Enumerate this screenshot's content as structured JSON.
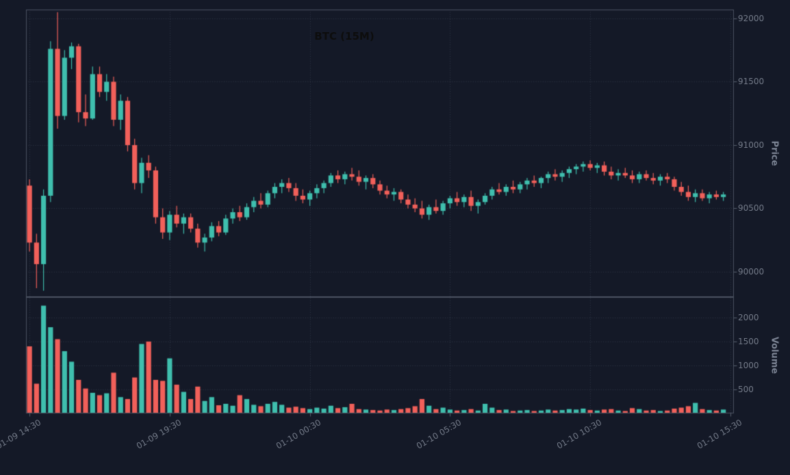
{
  "chart_data": {
    "type": "candlestick",
    "title": "BTC (15M)",
    "symbol": "BTC",
    "interval": "15M",
    "colors": {
      "background": "#141927",
      "up": "#3fbfae",
      "down": "#f2605a",
      "grid": "rgba(118,128,145,0.32)",
      "frame": "#4d5463",
      "tick": "#5a6170",
      "tick_label": "#747b89",
      "axis_title": "#7b8393",
      "title_color": "#0d0d0d"
    },
    "panels": [
      {
        "name": "price",
        "ylabel": "Price",
        "yticks": [
          90000,
          90500,
          91000,
          91500,
          92000
        ],
        "ylim": [
          89800,
          92070
        ]
      },
      {
        "name": "volume",
        "ylabel": "Volume",
        "yticks": [
          500,
          1000,
          1500,
          2000
        ],
        "ylim": [
          0,
          2430
        ]
      }
    ],
    "x_ticks": {
      "labels": [
        "01-09 14:30",
        "01-09 19:30",
        "01-10 00:30",
        "01-10 05:30",
        "01-10 10:30",
        "01-10 15:30"
      ],
      "indices": [
        0,
        20,
        40,
        60,
        80,
        100
      ]
    },
    "grid": true,
    "candles": [
      [
        90680,
        90730,
        90160,
        90230,
        1400
      ],
      [
        90230,
        90300,
        89870,
        90060,
        620
      ],
      [
        90060,
        90650,
        89850,
        90600,
        2250
      ],
      [
        90600,
        91820,
        90550,
        91760,
        1800
      ],
      [
        91760,
        92050,
        91130,
        91230,
        1550
      ],
      [
        91230,
        91750,
        91200,
        91690,
        1300
      ],
      [
        91690,
        91810,
        91600,
        91780,
        1080
      ],
      [
        91780,
        91800,
        91180,
        91260,
        700
      ],
      [
        91260,
        91400,
        91150,
        91210,
        520
      ],
      [
        91210,
        91620,
        91200,
        91560,
        430
      ],
      [
        91560,
        91620,
        91380,
        91420,
        380
      ],
      [
        91420,
        91560,
        91350,
        91500,
        420
      ],
      [
        91500,
        91540,
        91150,
        91200,
        850
      ],
      [
        91200,
        91400,
        91120,
        91350,
        340
      ],
      [
        91350,
        91380,
        90950,
        91000,
        300
      ],
      [
        91000,
        91050,
        90650,
        90700,
        750
      ],
      [
        90700,
        90900,
        90620,
        90860,
        1450
      ],
      [
        90860,
        90920,
        90740,
        90800,
        1500
      ],
      [
        90800,
        90830,
        90380,
        90430,
        700
      ],
      [
        90430,
        90500,
        90260,
        90310,
        680
      ],
      [
        90310,
        90480,
        90250,
        90450,
        1150
      ],
      [
        90450,
        90520,
        90350,
        90380,
        600
      ],
      [
        90380,
        90460,
        90300,
        90430,
        450
      ],
      [
        90430,
        90460,
        90310,
        90340,
        300
      ],
      [
        90340,
        90380,
        90190,
        90230,
        560
      ],
      [
        90230,
        90300,
        90160,
        90270,
        260
      ],
      [
        90270,
        90390,
        90240,
        90360,
        340
      ],
      [
        90360,
        90400,
        90280,
        90310,
        170
      ],
      [
        90310,
        90450,
        90290,
        90420,
        200
      ],
      [
        90420,
        90500,
        90380,
        90470,
        160
      ],
      [
        90470,
        90520,
        90400,
        90430,
        380
      ],
      [
        90430,
        90540,
        90410,
        90510,
        300
      ],
      [
        90510,
        90590,
        90470,
        90560,
        180
      ],
      [
        90560,
        90620,
        90500,
        90530,
        150
      ],
      [
        90530,
        90640,
        90510,
        90620,
        200
      ],
      [
        90620,
        90700,
        90580,
        90670,
        240
      ],
      [
        90670,
        90730,
        90620,
        90700,
        180
      ],
      [
        90700,
        90740,
        90630,
        90660,
        120
      ],
      [
        90660,
        90700,
        90560,
        90600,
        140
      ],
      [
        90600,
        90650,
        90540,
        90570,
        110
      ],
      [
        90570,
        90640,
        90520,
        90620,
        90
      ],
      [
        90620,
        90690,
        90580,
        90660,
        120
      ],
      [
        90660,
        90720,
        90620,
        90700,
        100
      ],
      [
        90700,
        90780,
        90670,
        90760,
        160
      ],
      [
        90760,
        90800,
        90700,
        90730,
        110
      ],
      [
        90730,
        90790,
        90690,
        90770,
        130
      ],
      [
        90770,
        90820,
        90720,
        90750,
        200
      ],
      [
        90750,
        90800,
        90680,
        90710,
        90
      ],
      [
        90710,
        90760,
        90650,
        90740,
        80
      ],
      [
        90740,
        90770,
        90660,
        90690,
        70
      ],
      [
        90690,
        90720,
        90610,
        90640,
        60
      ],
      [
        90640,
        90680,
        90580,
        90610,
        80
      ],
      [
        90610,
        90660,
        90560,
        90630,
        70
      ],
      [
        90630,
        90650,
        90540,
        90570,
        90
      ],
      [
        90570,
        90610,
        90500,
        90530,
        110
      ],
      [
        90530,
        90580,
        90470,
        90500,
        150
      ],
      [
        90500,
        90560,
        90420,
        90450,
        300
      ],
      [
        90450,
        90530,
        90410,
        90510,
        160
      ],
      [
        90510,
        90570,
        90460,
        90480,
        90
      ],
      [
        90480,
        90560,
        90450,
        90540,
        120
      ],
      [
        90540,
        90600,
        90500,
        90580,
        80
      ],
      [
        90580,
        90630,
        90520,
        90550,
        60
      ],
      [
        90550,
        90610,
        90510,
        90590,
        70
      ],
      [
        90590,
        90640,
        90480,
        90520,
        90
      ],
      [
        90520,
        90570,
        90460,
        90550,
        60
      ],
      [
        90550,
        90620,
        90530,
        90600,
        200
      ],
      [
        90600,
        90670,
        90570,
        90650,
        120
      ],
      [
        90650,
        90700,
        90610,
        90630,
        70
      ],
      [
        90630,
        90690,
        90600,
        90670,
        80
      ],
      [
        90670,
        90720,
        90620,
        90650,
        50
      ],
      [
        90650,
        90710,
        90620,
        90690,
        60
      ],
      [
        90690,
        90740,
        90650,
        90720,
        70
      ],
      [
        90720,
        90760,
        90670,
        90700,
        50
      ],
      [
        90700,
        90750,
        90660,
        90740,
        60
      ],
      [
        90740,
        90790,
        90700,
        90770,
        80
      ],
      [
        90770,
        90810,
        90720,
        90750,
        60
      ],
      [
        90750,
        90800,
        90710,
        90780,
        70
      ],
      [
        90780,
        90830,
        90740,
        90810,
        90
      ],
      [
        90810,
        90850,
        90770,
        90830,
        80
      ],
      [
        90830,
        90870,
        90790,
        90850,
        100
      ],
      [
        90850,
        90880,
        90800,
        90820,
        70
      ],
      [
        90820,
        90860,
        90780,
        90840,
        60
      ],
      [
        90840,
        90870,
        90760,
        90790,
        80
      ],
      [
        90790,
        90830,
        90730,
        90760,
        90
      ],
      [
        90760,
        90810,
        90720,
        90780,
        60
      ],
      [
        90780,
        90820,
        90740,
        90760,
        50
      ],
      [
        90760,
        90800,
        90700,
        90730,
        110
      ],
      [
        90730,
        90790,
        90700,
        90770,
        90
      ],
      [
        90770,
        90800,
        90720,
        90740,
        60
      ],
      [
        90740,
        90780,
        90690,
        90720,
        70
      ],
      [
        90720,
        90770,
        90680,
        90750,
        50
      ],
      [
        90750,
        90780,
        90700,
        90730,
        60
      ],
      [
        90730,
        90750,
        90640,
        90670,
        100
      ],
      [
        90670,
        90710,
        90600,
        90630,
        120
      ],
      [
        90630,
        90680,
        90560,
        90590,
        150
      ],
      [
        90590,
        90650,
        90550,
        90620,
        220
      ],
      [
        90620,
        90650,
        90560,
        90580,
        90
      ],
      [
        90580,
        90630,
        90540,
        90610,
        70
      ],
      [
        90610,
        90640,
        90570,
        90590,
        60
      ],
      [
        90590,
        90630,
        90560,
        90610,
        80
      ]
    ]
  }
}
